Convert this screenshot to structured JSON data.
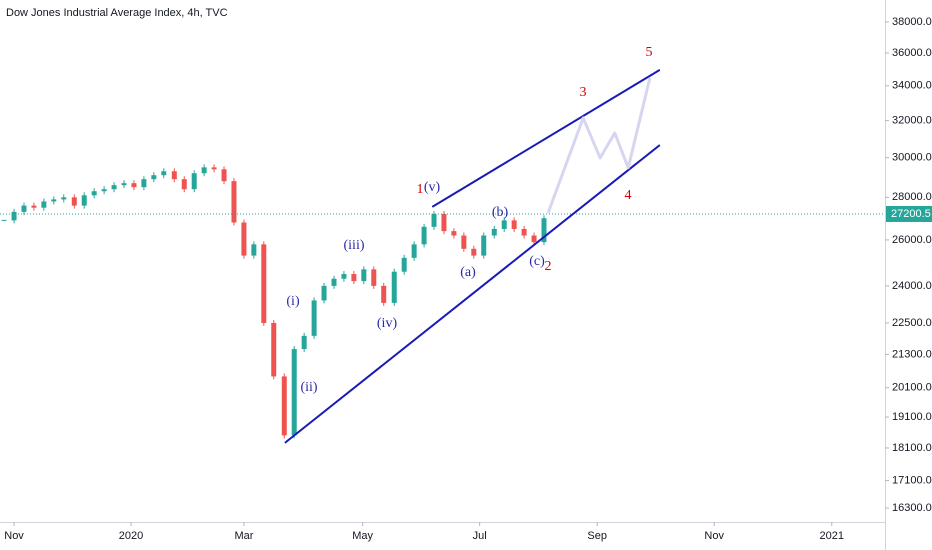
{
  "chart_data": {
    "type": "candlestick",
    "title": "Dow Jones Industrial Average Index, 4h, TVC",
    "log_scale": true,
    "grid": false,
    "xlim": [
      -0.24,
      14.89
    ],
    "xticks": [
      {
        "value": 0,
        "label": "Nov"
      },
      {
        "value": 2,
        "label": "2020"
      },
      {
        "value": 3.93,
        "label": "Mar"
      },
      {
        "value": 5.96,
        "label": "May"
      },
      {
        "value": 7.96,
        "label": "Jul"
      },
      {
        "value": 9.97,
        "label": "Sep"
      },
      {
        "value": 11.97,
        "label": "Nov"
      },
      {
        "value": 13.98,
        "label": "2021"
      }
    ],
    "ylim": [
      15910,
      39480
    ],
    "yticks": [
      {
        "value": 16300,
        "label": "16300.0"
      },
      {
        "value": 17100,
        "label": "17100.0"
      },
      {
        "value": 18100,
        "label": "18100.0"
      },
      {
        "value": 19100,
        "label": "19100.0"
      },
      {
        "value": 20100,
        "label": "20100.0"
      },
      {
        "value": 21300,
        "label": "21300.0"
      },
      {
        "value": 22500,
        "label": "22500.0"
      },
      {
        "value": 24000,
        "label": "24000.0"
      },
      {
        "value": 26000,
        "label": "26000.0"
      },
      {
        "value": 28000,
        "label": "28000.0"
      },
      {
        "value": 30000,
        "label": "30000.0"
      },
      {
        "value": 32000,
        "label": "32000.0"
      },
      {
        "value": 34000,
        "label": "34000.0"
      },
      {
        "value": 36000,
        "label": "36000.0"
      },
      {
        "value": 38000,
        "label": "38000.0"
      }
    ],
    "up_color": "#26a69a",
    "down_color": "#ef5350",
    "price": {
      "x": [
        -0.17,
        0,
        0.17,
        0.34,
        0.51,
        0.68,
        0.85,
        1.03,
        1.2,
        1.37,
        1.54,
        1.71,
        1.88,
        2.05,
        2.22,
        2.39,
        2.56,
        2.74,
        2.91,
        3.08,
        3.25,
        3.42,
        3.59,
        3.76,
        3.93,
        4.1,
        4.27,
        4.44,
        4.62,
        4.79,
        4.96,
        5.13,
        5.3,
        5.47,
        5.64,
        5.81,
        5.98,
        6.15,
        6.32,
        6.5,
        6.67,
        6.84,
        7.01,
        7.18,
        7.35,
        7.52,
        7.69,
        7.86,
        8.03,
        8.21,
        8.38,
        8.55,
        8.72,
        8.89,
        9.06
      ],
      "close": [
        26900,
        27300,
        27600,
        27500,
        27800,
        27900,
        28000,
        27600,
        28100,
        28300,
        28400,
        28600,
        28700,
        28500,
        28900,
        29100,
        29300,
        28900,
        28400,
        29200,
        29500,
        29400,
        28800,
        26800,
        25300,
        25800,
        22500,
        20500,
        18500,
        21500,
        22000,
        23400,
        24000,
        24300,
        24500,
        24200,
        24700,
        24000,
        23300,
        24600,
        25200,
        25800,
        26600,
        27200,
        26400,
        26200,
        25600,
        25300,
        26200,
        26500,
        26900,
        26500,
        26200,
        25900,
        27000
      ]
    },
    "last_price": 27200.5,
    "last_price_color": "#26a69a",
    "trend_lines": [
      {
        "color": "#1a1ab8",
        "x": [
          7.15,
          11.04
        ],
        "y": [
          27540,
          34960
        ]
      },
      {
        "color": "#1a1ab8",
        "x": [
          4.63,
          11.04
        ],
        "y": [
          18260,
          30670
        ]
      }
    ],
    "projection": {
      "color": "#d6d6f0",
      "x": [
        9.13,
        9.73,
        10.02,
        10.27,
        10.5,
        10.87
      ],
      "y": [
        27250,
        32150,
        29990,
        31320,
        29480,
        34470
      ]
    },
    "wave_labels": [
      {
        "text": "1",
        "color": "#d50000"
      },
      {
        "text": "(v)",
        "color": "#2929a3"
      },
      {
        "text": "(b)",
        "color": "#2929a3"
      },
      {
        "text": "(c)",
        "color": "#2929a3"
      },
      {
        "text": "2",
        "color": "#d50000"
      },
      {
        "text": "(a)",
        "color": "#2929a3"
      },
      {
        "text": "(iii)",
        "color": "#2929a3"
      },
      {
        "text": "(i)",
        "color": "#2929a3"
      },
      {
        "text": "(ii)",
        "color": "#2929a3"
      },
      {
        "text": "(iv)",
        "color": "#2929a3"
      },
      {
        "text": "3",
        "color": "#d50000"
      },
      {
        "text": "4",
        "color": "#d50000"
      },
      {
        "text": "5",
        "color": "#d50000"
      }
    ]
  }
}
